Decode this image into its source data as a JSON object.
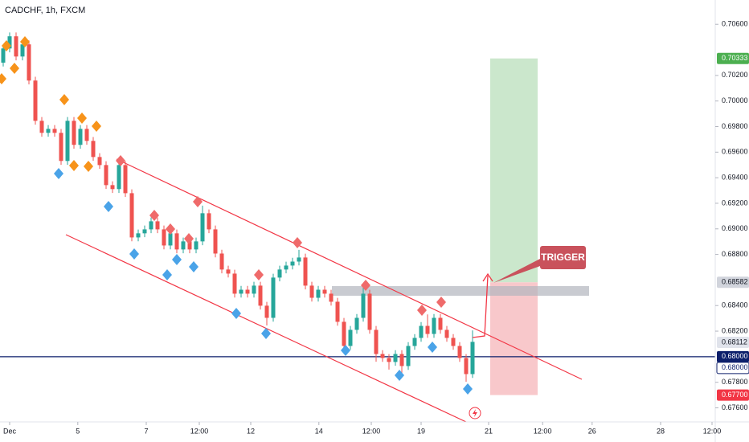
{
  "chart_data": {
    "type": "candlestick",
    "title": "CADCHF, 1h, FXCM",
    "annotation": "TRIGGER",
    "up_color": "#26a69a",
    "down_color": "#ef5350",
    "xlim": [
      -0.5,
      110.75
    ],
    "xticks": [
      {
        "value": 1,
        "label": "Dec"
      },
      {
        "value": 11.6,
        "label": "5"
      },
      {
        "value": 22.25,
        "label": "7"
      },
      {
        "value": 30.5,
        "label": "12:00"
      },
      {
        "value": 38.5,
        "label": "12"
      },
      {
        "value": 49.1,
        "label": "14"
      },
      {
        "value": 57.25,
        "label": "12:00"
      },
      {
        "value": 65,
        "label": "19"
      },
      {
        "value": 75.5,
        "label": "21"
      },
      {
        "value": 83.9,
        "label": "12:00"
      },
      {
        "value": 91.6,
        "label": "26"
      },
      {
        "value": 102.25,
        "label": "28"
      },
      {
        "value": 110.25,
        "label": "12:00"
      }
    ],
    "ylim": [
      0.6749,
      0.7079
    ],
    "yticks": [
      {
        "value": 0.706,
        "label": "0.70600"
      },
      {
        "value": 0.702,
        "label": "0.70200"
      },
      {
        "value": 0.7,
        "label": "0.70000"
      },
      {
        "value": 0.698,
        "label": "0.69800"
      },
      {
        "value": 0.696,
        "label": "0.69600"
      },
      {
        "value": 0.694,
        "label": "0.69400"
      },
      {
        "value": 0.692,
        "label": "0.69200"
      },
      {
        "value": 0.69,
        "label": "0.69000"
      },
      {
        "value": 0.688,
        "label": "0.68800"
      },
      {
        "value": 0.684,
        "label": "0.68400"
      },
      {
        "value": 0.682,
        "label": "0.68200"
      },
      {
        "value": 0.678,
        "label": "0.67800"
      },
      {
        "value": 0.676,
        "label": "0.67600"
      }
    ],
    "price_labels": [
      {
        "value": 0.70333,
        "label": "0.70333",
        "bg": "#4caf50",
        "fg": "#ffffff"
      },
      {
        "value": 0.68582,
        "label": "0.68582",
        "bg": "#d1d4dc",
        "fg": "#131722"
      },
      {
        "value": 0.68112,
        "label": "0.68112",
        "bg": "#e0e3eb",
        "fg": "#131722"
      },
      {
        "value": 0.68,
        "label": "0.68000",
        "bg": "#0c1f6b",
        "fg": "#ffffff"
      },
      {
        "value": 0.68,
        "label": "0.68000",
        "bg": "#ffffff",
        "fg": "#0c1f6b"
      },
      {
        "value": 0.677,
        "label": "0.67700",
        "bg": "#f23645",
        "fg": "#ffffff"
      }
    ],
    "open": [
      0.703,
      0.70411,
      0.70506,
      0.70348,
      0.70443,
      0.7016,
      0.69845,
      0.69751,
      0.69782,
      0.69751,
      0.69531,
      0.69845,
      0.69657,
      0.69782,
      0.69688,
      0.69562,
      0.69499,
      0.69342,
      0.69311,
      0.69499,
      0.69279,
      0.68933,
      0.68965,
      0.68996,
      0.69059,
      0.68996,
      0.6887,
      0.68965,
      0.68839,
      0.68902,
      0.68839,
      0.68902,
      0.69122,
      0.68996,
      0.68807,
      0.68682,
      0.6865,
      0.68493,
      0.68524,
      0.68493,
      0.68556,
      0.68399,
      0.68304,
      0.68619,
      0.68682,
      0.68713,
      0.68744,
      0.68776,
      0.68556,
      0.68461,
      0.68524,
      0.68493,
      0.6843,
      0.68273,
      0.68084,
      0.6821,
      0.68304,
      0.68493,
      0.6821,
      0.68021,
      0.6799,
      0.67959,
      0.68021,
      0.67927,
      0.68084,
      0.68147,
      0.68241,
      0.68178,
      0.68304,
      0.6821,
      0.68147,
      0.68084,
      0.6799,
      0.67864
    ],
    "high": [
      0.70441,
      0.70536,
      0.70536,
      0.70473,
      0.70473,
      0.7019,
      0.69875,
      0.69812,
      0.69812,
      0.69781,
      0.69875,
      0.69875,
      0.69812,
      0.69812,
      0.69718,
      0.69592,
      0.69529,
      0.69372,
      0.69529,
      0.69529,
      0.69309,
      0.68995,
      0.69026,
      0.69089,
      0.69089,
      0.69026,
      0.68995,
      0.68995,
      0.68932,
      0.68932,
      0.68932,
      0.69182,
      0.69152,
      0.69026,
      0.68837,
      0.68712,
      0.6868,
      0.68554,
      0.68554,
      0.68586,
      0.68586,
      0.68429,
      0.68649,
      0.68712,
      0.68743,
      0.68774,
      0.68836,
      0.68806,
      0.68586,
      0.68554,
      0.68554,
      0.68523,
      0.6846,
      0.68303,
      0.6824,
      0.68334,
      0.68553,
      0.68523,
      0.6824,
      0.68051,
      0.6802,
      0.68051,
      0.68051,
      0.68114,
      0.68177,
      0.68271,
      0.68331,
      0.68334,
      0.68334,
      0.6824,
      0.68177,
      0.68114,
      0.6802,
      0.68206
    ],
    "low": [
      0.7027,
      0.70381,
      0.70318,
      0.70318,
      0.7013,
      0.69815,
      0.69721,
      0.69721,
      0.69721,
      0.69501,
      0.69501,
      0.69627,
      0.69627,
      0.69658,
      0.69532,
      0.69469,
      0.69312,
      0.69281,
      0.69281,
      0.69249,
      0.68903,
      0.68903,
      0.68935,
      0.68966,
      0.68966,
      0.6884,
      0.6884,
      0.68809,
      0.68809,
      0.68809,
      0.68809,
      0.68872,
      0.68966,
      0.68777,
      0.68652,
      0.6862,
      0.68463,
      0.68463,
      0.68463,
      0.68463,
      0.68369,
      0.68244,
      0.68274,
      0.68589,
      0.68652,
      0.68683,
      0.68714,
      0.68526,
      0.68431,
      0.68431,
      0.68463,
      0.684,
      0.68243,
      0.68024,
      0.68054,
      0.6818,
      0.68274,
      0.6818,
      0.67961,
      0.6796,
      0.67899,
      0.67929,
      0.67867,
      0.67897,
      0.68054,
      0.68117,
      0.68148,
      0.68148,
      0.6818,
      0.68117,
      0.68054,
      0.6796,
      0.67804,
      0.67834
    ],
    "close": [
      0.70411,
      0.70506,
      0.70348,
      0.70443,
      0.7016,
      0.69845,
      0.69751,
      0.69782,
      0.69751,
      0.69531,
      0.69845,
      0.69657,
      0.69782,
      0.69688,
      0.69562,
      0.69499,
      0.69342,
      0.69311,
      0.69499,
      0.69279,
      0.68933,
      0.68965,
      0.68996,
      0.69059,
      0.68996,
      0.6887,
      0.68965,
      0.68839,
      0.68902,
      0.68839,
      0.68902,
      0.69122,
      0.68996,
      0.68807,
      0.68682,
      0.6865,
      0.68493,
      0.68524,
      0.68493,
      0.68556,
      0.68399,
      0.68304,
      0.68619,
      0.68682,
      0.68713,
      0.68744,
      0.68776,
      0.68556,
      0.68461,
      0.68524,
      0.68493,
      0.6843,
      0.68273,
      0.68084,
      0.6821,
      0.68304,
      0.68493,
      0.6821,
      0.68021,
      0.6799,
      0.67959,
      0.68021,
      0.67927,
      0.68084,
      0.68147,
      0.68241,
      0.68178,
      0.68304,
      0.6821,
      0.68147,
      0.68084,
      0.6799,
      0.67864,
      0.68116
    ]
  }
}
